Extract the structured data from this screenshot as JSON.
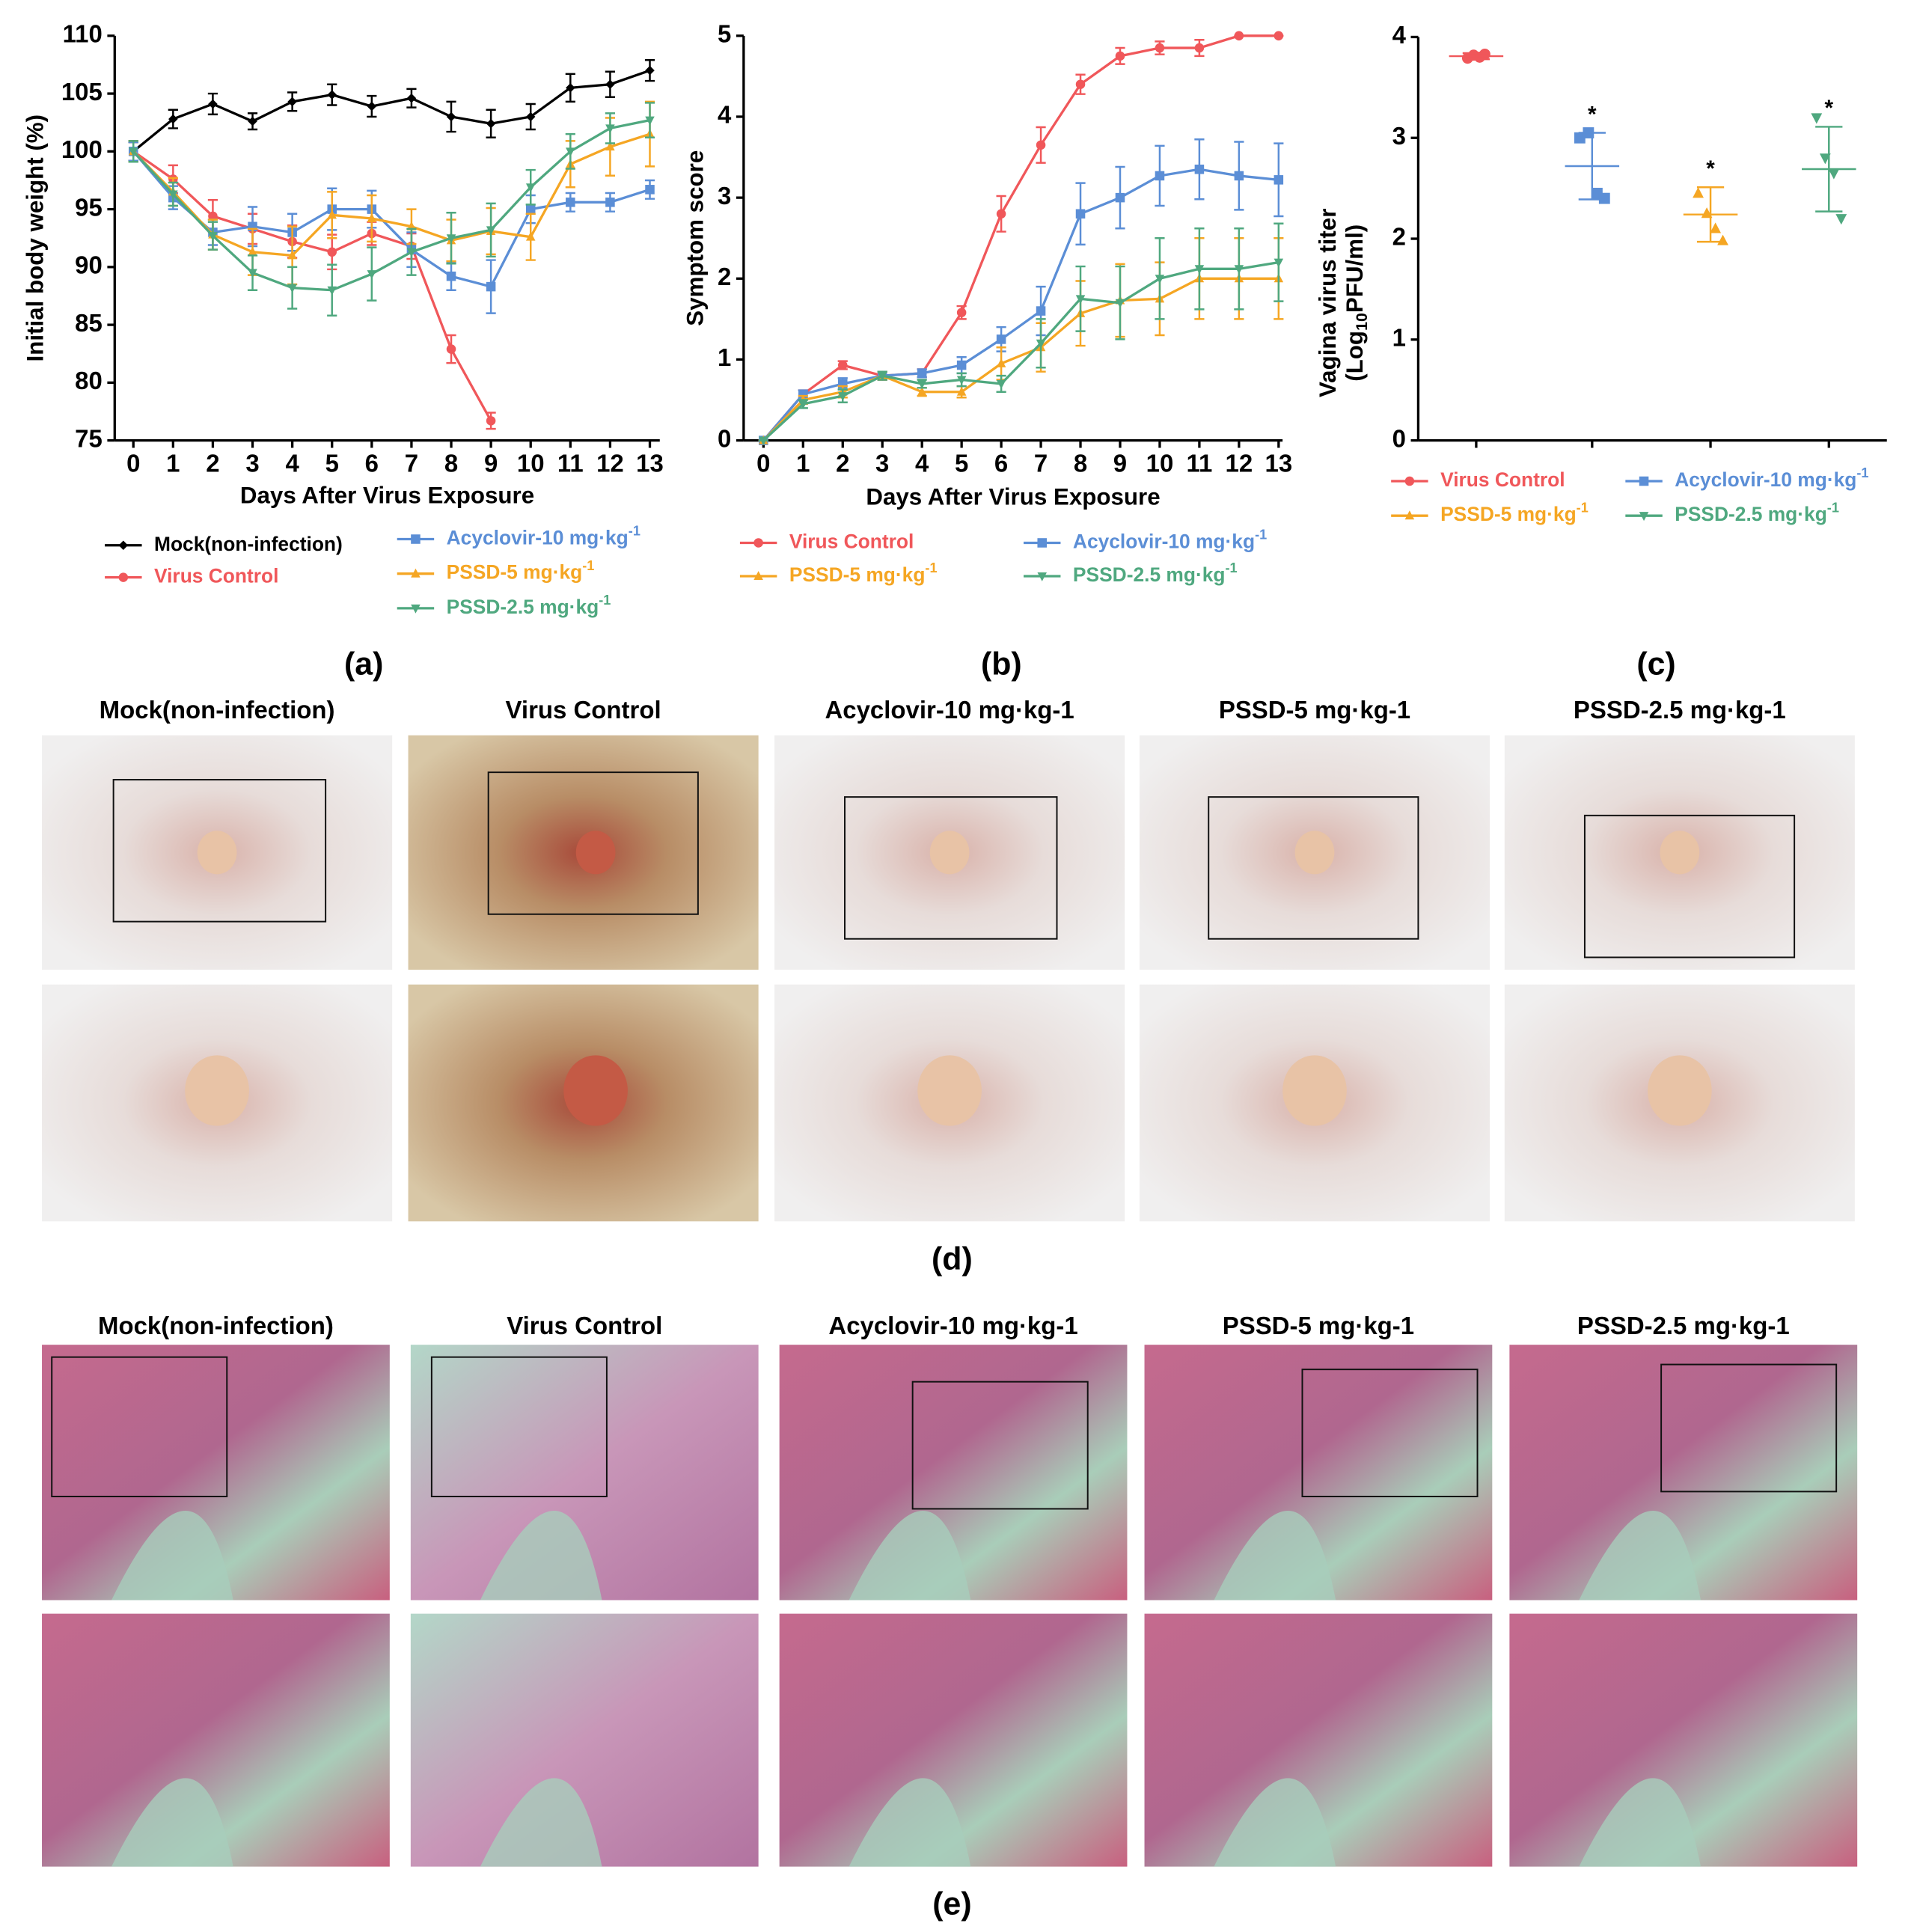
{
  "chart_data": [
    {
      "type": "line",
      "panel_label": "(a)",
      "xlabel": "Days After Virus Exposure",
      "ylabel": "Initial body weight (%)",
      "x": [
        0,
        1,
        2,
        3,
        4,
        5,
        6,
        7,
        8,
        9,
        10,
        11,
        12,
        13
      ],
      "xlim": [
        -0.47,
        13.25
      ],
      "xticks": [
        0,
        1,
        2,
        3,
        4,
        5,
        6,
        7,
        8,
        9,
        10,
        11,
        12,
        13
      ],
      "ylim": [
        75,
        110
      ],
      "yticks": [
        75,
        80,
        85,
        90,
        95,
        100,
        105,
        110
      ],
      "series": [
        {
          "name": "Mock(non-infection)",
          "color": "#000000",
          "marker": "diamond",
          "values": [
            100,
            102.8,
            104.1,
            102.6,
            104.3,
            104.9,
            103.9,
            104.6,
            103.0,
            102.4,
            103.0,
            105.5,
            105.8,
            107.0
          ],
          "errors": [
            0.8,
            0.8,
            0.9,
            0.7,
            0.8,
            0.9,
            0.9,
            0.8,
            1.3,
            1.2,
            1.1,
            1.2,
            1.1,
            0.9
          ]
        },
        {
          "name": "Virus Control",
          "color": "#f0575a",
          "marker": "circle",
          "values": [
            100,
            97.6,
            94.4,
            93.3,
            92.2,
            91.3,
            92.9,
            91.8,
            82.9,
            76.7,
            null,
            null,
            null,
            null
          ],
          "errors": [
            0.9,
            1.2,
            1.4,
            1.3,
            1.4,
            1.5,
            1.0,
            1.1,
            1.2,
            0.7,
            null,
            null,
            null,
            null
          ]
        },
        {
          "name": "Acyclovir-10 mg·kg",
          "name_sup": "-1",
          "color": "#5b8ed6",
          "marker": "square",
          "values": [
            100,
            96.0,
            93.0,
            93.5,
            93.0,
            95.0,
            95.0,
            91.5,
            89.2,
            88.3,
            95.0,
            95.6,
            95.6,
            96.7
          ],
          "errors": [
            0.8,
            1.0,
            1.1,
            1.7,
            1.6,
            1.8,
            1.6,
            1.5,
            1.2,
            2.3,
            1.2,
            0.8,
            0.8,
            0.8
          ]
        },
        {
          "name": "PSSD-5 mg·kg",
          "name_sup": "-1",
          "color": "#f5a623",
          "marker": "triangle",
          "values": [
            100,
            96.5,
            92.8,
            91.3,
            91.0,
            94.5,
            94.2,
            93.5,
            92.3,
            93.1,
            92.6,
            98.9,
            100.4,
            101.5
          ],
          "errors": [
            0.9,
            1.2,
            1.3,
            2.0,
            2.5,
            2.0,
            2.0,
            1.5,
            1.8,
            2.0,
            2.0,
            2.0,
            2.5,
            2.8
          ]
        },
        {
          "name": "PSSD-2.5 mg·kg",
          "name_sup": "-1",
          "color": "#4fa87f",
          "marker": "triangle-down",
          "values": [
            100,
            96.3,
            92.7,
            89.5,
            88.2,
            88.0,
            89.4,
            91.3,
            92.5,
            93.2,
            96.9,
            100.0,
            102.0,
            102.7
          ],
          "errors": [
            0.9,
            1.0,
            1.2,
            1.5,
            1.8,
            2.2,
            2.3,
            2.0,
            2.2,
            2.3,
            1.5,
            1.5,
            1.3,
            1.5
          ]
        }
      ]
    },
    {
      "type": "line",
      "panel_label": "(b)",
      "xlabel": "Days After Virus Exposure",
      "ylabel": "Symptom score",
      "x": [
        0,
        1,
        2,
        3,
        4,
        5,
        6,
        7,
        8,
        9,
        10,
        11,
        12,
        13
      ],
      "xlim": [
        -0.5,
        13.1
      ],
      "xticks": [
        0,
        1,
        2,
        3,
        4,
        5,
        6,
        7,
        8,
        9,
        10,
        11,
        12,
        13
      ],
      "ylim": [
        0,
        5
      ],
      "yticks": [
        0,
        1,
        2,
        3,
        4,
        5
      ],
      "series": [
        {
          "name": "Virus Control",
          "color": "#f0575a",
          "marker": "circle",
          "values": [
            0,
            0.57,
            0.93,
            0.8,
            0.83,
            1.58,
            2.8,
            3.65,
            4.4,
            4.75,
            4.85,
            4.85,
            5,
            5
          ],
          "errors": [
            0,
            0.05,
            0.05,
            0.05,
            0.05,
            0.08,
            0.22,
            0.22,
            0.12,
            0.1,
            0.08,
            0.1,
            0,
            0
          ]
        },
        {
          "name": "Acyclovir-10 mg·kg",
          "name_sup": "-1",
          "color": "#5b8ed6",
          "marker": "square",
          "values": [
            0,
            0.57,
            0.7,
            0.8,
            0.83,
            0.93,
            1.25,
            1.6,
            2.8,
            3.0,
            3.27,
            3.35,
            3.27,
            3.22
          ],
          "errors": [
            0,
            0.05,
            0.07,
            0.05,
            0.05,
            0.1,
            0.15,
            0.3,
            0.38,
            0.38,
            0.37,
            0.37,
            0.42,
            0.45
          ]
        },
        {
          "name": "PSSD-5 mg·kg",
          "name_sup": "-1",
          "color": "#f5a623",
          "marker": "triangle",
          "values": [
            0,
            0.5,
            0.6,
            0.8,
            0.6,
            0.6,
            0.95,
            1.15,
            1.57,
            1.73,
            1.75,
            2.0,
            2.0,
            2.0
          ],
          "errors": [
            0,
            0.05,
            0.07,
            0.05,
            0.05,
            0.07,
            0.2,
            0.3,
            0.4,
            0.45,
            0.45,
            0.5,
            0.5,
            0.5
          ]
        },
        {
          "name": "PSSD-2.5 mg·kg",
          "name_sup": "-1",
          "color": "#4fa87f",
          "marker": "triangle-down",
          "values": [
            0,
            0.45,
            0.55,
            0.8,
            0.7,
            0.75,
            0.7,
            1.2,
            1.75,
            1.7,
            2.0,
            2.12,
            2.12,
            2.2
          ],
          "errors": [
            0,
            0.05,
            0.08,
            0.05,
            0.05,
            0.08,
            0.1,
            0.3,
            0.4,
            0.45,
            0.5,
            0.5,
            0.5,
            0.48
          ]
        }
      ]
    },
    {
      "type": "scatter",
      "panel_label": "(c)",
      "ylabel": "Vagina virus titer",
      "ylabel2": {
        "before": "(Log",
        "sub": "10",
        "after": "PFU/ml)"
      },
      "ylim": [
        0,
        4
      ],
      "yticks": [
        0,
        1,
        2,
        3,
        4
      ],
      "series": [
        {
          "name": "Virus Control",
          "color": "#f0575a",
          "marker": "circle",
          "values": [
            3.79,
            3.82,
            3.8,
            3.83
          ],
          "mean": 3.81,
          "sd": 0.03
        },
        {
          "name": "Acyclovir-10 mg·kg",
          "name_sup": "-1",
          "color": "#5b8ed6",
          "marker": "square",
          "values": [
            3.0,
            3.05,
            2.45,
            2.4
          ],
          "mean": 2.72,
          "sd": 0.33,
          "annotation": "*"
        },
        {
          "name": "PSSD-5 mg·kg",
          "name_sup": "-1",
          "color": "#f5a623",
          "marker": "triangle",
          "values": [
            2.45,
            2.25,
            2.1,
            1.98
          ],
          "mean": 2.24,
          "sd": 0.27,
          "annotation": "*"
        },
        {
          "name": "PSSD-2.5 mg·kg",
          "name_sup": "-1",
          "color": "#4fa87f",
          "marker": "triangle-down",
          "values": [
            3.2,
            2.8,
            2.65,
            2.2
          ],
          "mean": 2.69,
          "sd": 0.42,
          "annotation": "*"
        }
      ]
    }
  ],
  "photo_panels": [
    {
      "label": "(d)",
      "captions": [
        "Mock(non-infection)",
        "Virus Control",
        "Acyclovir-10 mg·kg-1",
        "PSSD-5 mg·kg-1",
        "PSSD-2.5 mg·kg-1"
      ]
    },
    {
      "label": "(e)",
      "captions": [
        "Mock(non-infection)",
        "Virus Control",
        "Acyclovir-10 mg·kg-1",
        "PSSD-5 mg·kg-1",
        "PSSD-2.5 mg·kg-1"
      ]
    }
  ]
}
